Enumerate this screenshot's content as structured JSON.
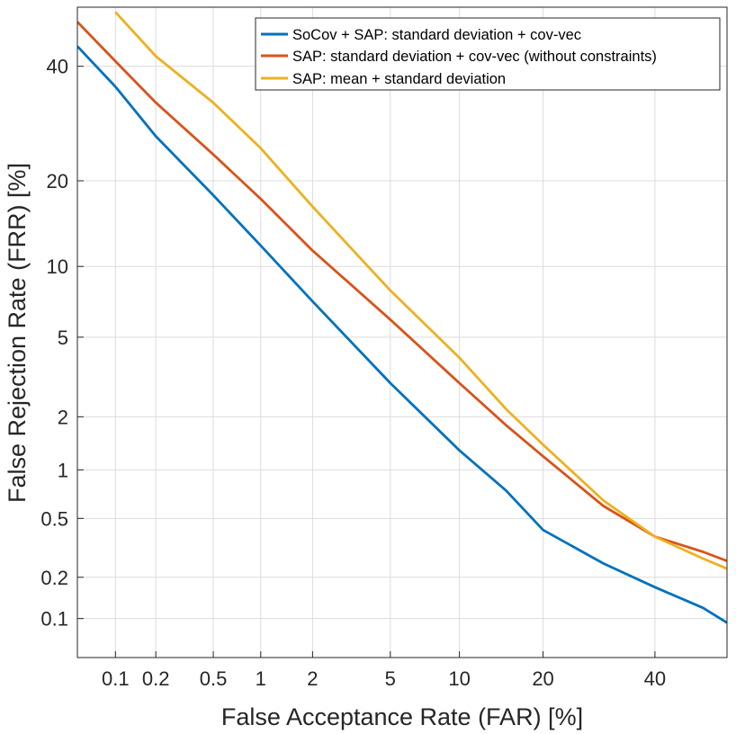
{
  "chart_data": {
    "type": "line",
    "xlabel": "False Acceptance Rate (FAR) [%]",
    "ylabel": "False Rejection Rate (FRR) [%]",
    "x_scale": "normal-deviate",
    "y_scale": "normal-deviate",
    "xlim": [
      0.05,
      55
    ],
    "ylim": [
      0.05,
      52
    ],
    "x_ticks": [
      0.1,
      0.2,
      0.5,
      1,
      2,
      5,
      10,
      20,
      40
    ],
    "x_tick_labels": [
      "0.1",
      "0.2",
      "0.5",
      "1",
      "2",
      "5",
      "10",
      "20",
      "40"
    ],
    "y_ticks": [
      0.1,
      0.2,
      0.5,
      1,
      2,
      5,
      10,
      20,
      40
    ],
    "y_tick_labels": [
      "0.1",
      "0.2",
      "0.5",
      "1",
      "2",
      "5",
      "10",
      "20",
      "40"
    ],
    "grid": true,
    "legend_position": "top-right",
    "series": [
      {
        "name": "SoCov + SAP: standard deviation + cov-vec",
        "color": "#0072BD",
        "x": [
          0.05,
          0.1,
          0.2,
          0.5,
          1,
          2,
          5,
          10,
          15,
          20,
          30,
          40,
          50,
          55
        ],
        "y": [
          44,
          36,
          27,
          18,
          12,
          7.2,
          3.0,
          1.3,
          0.75,
          0.42,
          0.25,
          0.17,
          0.12,
          0.093
        ]
      },
      {
        "name": "SAP: standard deviation + cov-vec (without constraints)",
        "color": "#D95319",
        "x": [
          0.05,
          0.1,
          0.2,
          0.5,
          1,
          2,
          5,
          10,
          15,
          20,
          30,
          40,
          50,
          55
        ],
        "y": [
          49,
          41,
          33,
          24,
          17.5,
          11.5,
          6.0,
          3.0,
          1.8,
          1.2,
          0.6,
          0.38,
          0.3,
          0.26
        ]
      },
      {
        "name": "SAP: mean + standard deviation",
        "color": "#EDB120",
        "x": [
          0.1,
          0.2,
          0.5,
          1,
          2,
          5,
          10,
          15,
          20,
          30,
          40,
          50,
          55
        ],
        "y": [
          51,
          42,
          33,
          25,
          16.5,
          8.0,
          4.0,
          2.2,
          1.4,
          0.65,
          0.38,
          0.27,
          0.23
        ]
      }
    ]
  }
}
